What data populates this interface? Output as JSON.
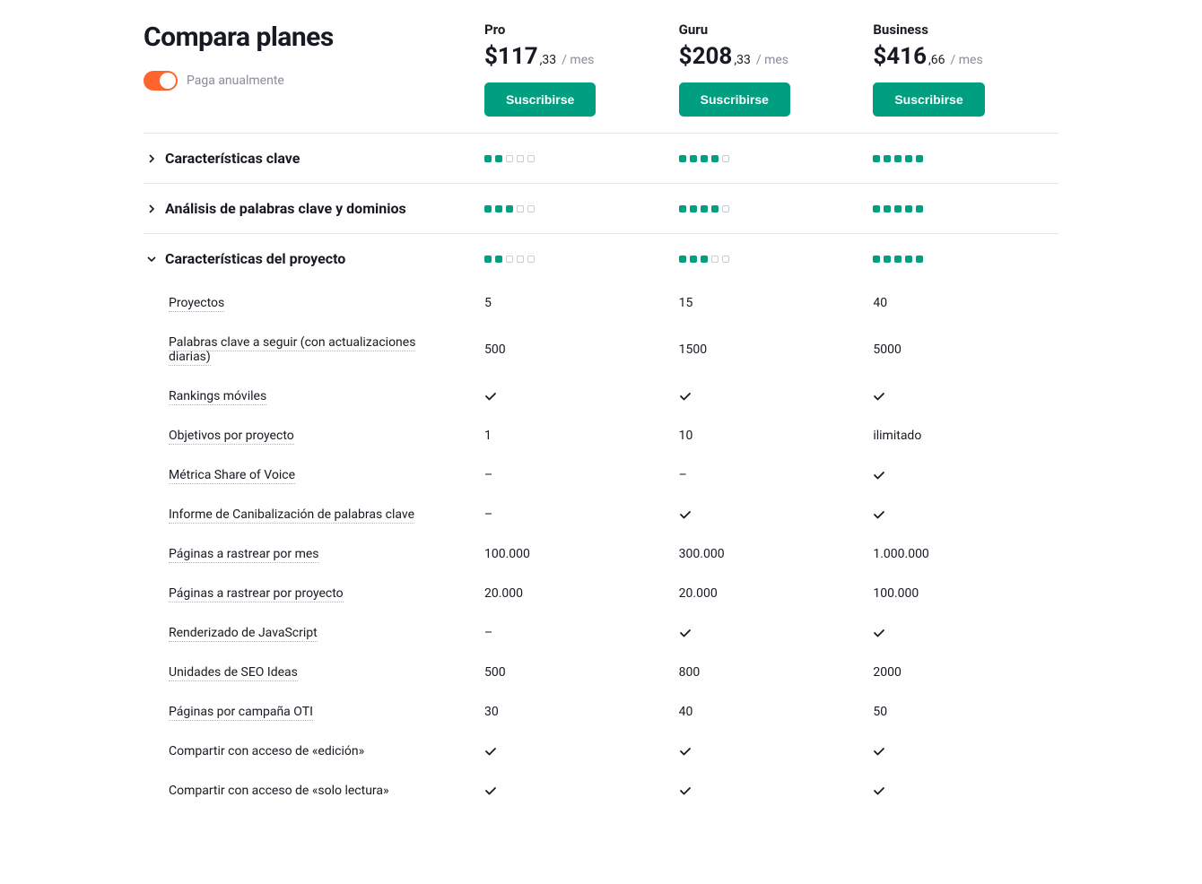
{
  "colors": {
    "accent_green": "#009f81",
    "accent_orange": "#ff642d",
    "text_primary": "#171a22",
    "text_muted": "#898d9a",
    "border": "#e5e5e5",
    "dot_empty_border": "#c8cbd0",
    "dotted_underline": "#b0b3ba",
    "background": "#ffffff"
  },
  "header": {
    "title": "Compara planes",
    "toggle_label": "Paga anualmente",
    "toggle_on": true
  },
  "plans": [
    {
      "name": "Pro",
      "price_main": "$117",
      "price_dec": ",33",
      "per": "/ mes",
      "button": "Suscribirse"
    },
    {
      "name": "Guru",
      "price_main": "$208",
      "price_dec": ",33",
      "per": "/ mes",
      "button": "Suscribirse"
    },
    {
      "name": "Business",
      "price_main": "$416",
      "price_dec": ",66",
      "per": "/ mes",
      "button": "Suscribirse"
    }
  ],
  "sections": [
    {
      "title": "Características clave",
      "expanded": false,
      "dots": [
        2,
        4,
        5
      ],
      "dot_max": 5
    },
    {
      "title": "Análisis de palabras clave y dominios",
      "expanded": false,
      "dots": [
        3,
        4,
        5
      ],
      "dot_max": 5
    },
    {
      "title": "Características del proyecto",
      "expanded": true,
      "dots": [
        2,
        3,
        5
      ],
      "dot_max": 5
    }
  ],
  "features": [
    {
      "label": "Proyectos",
      "dotted": true,
      "values": [
        "5",
        "15",
        "40"
      ]
    },
    {
      "label": "Palabras clave a seguir (con actualizaciones diarias)",
      "dotted": true,
      "values": [
        "500",
        "1500",
        "5000"
      ]
    },
    {
      "label": "Rankings móviles",
      "dotted": true,
      "values": [
        "check",
        "check",
        "check"
      ]
    },
    {
      "label": "Objetivos por proyecto",
      "dotted": true,
      "values": [
        "1",
        "10",
        "ilimitado"
      ]
    },
    {
      "label": "Métrica Share of Voice",
      "dotted": true,
      "values": [
        "dash",
        "dash",
        "check"
      ]
    },
    {
      "label": "Informe de Canibalización de palabras clave",
      "dotted": true,
      "values": [
        "dash",
        "check",
        "check"
      ]
    },
    {
      "label": "Páginas a rastrear por mes",
      "dotted": true,
      "values": [
        "100.000",
        "300.000",
        "1.000.000"
      ]
    },
    {
      "label": "Páginas a rastrear por proyecto",
      "dotted": true,
      "values": [
        "20.000",
        "20.000",
        "100.000"
      ]
    },
    {
      "label": "Renderizado de JavaScript",
      "dotted": true,
      "values": [
        "dash",
        "check",
        "check"
      ]
    },
    {
      "label": "Unidades de SEO Ideas",
      "dotted": true,
      "values": [
        "500",
        "800",
        "2000"
      ]
    },
    {
      "label": "Páginas por campaña OTI",
      "dotted": true,
      "values": [
        "30",
        "40",
        "50"
      ]
    },
    {
      "label": "Compartir con acceso de «edición»",
      "dotted": false,
      "values": [
        "check",
        "check",
        "check"
      ]
    },
    {
      "label": "Compartir con acceso de «solo lectura»",
      "dotted": false,
      "values": [
        "check",
        "check",
        "check"
      ]
    }
  ]
}
